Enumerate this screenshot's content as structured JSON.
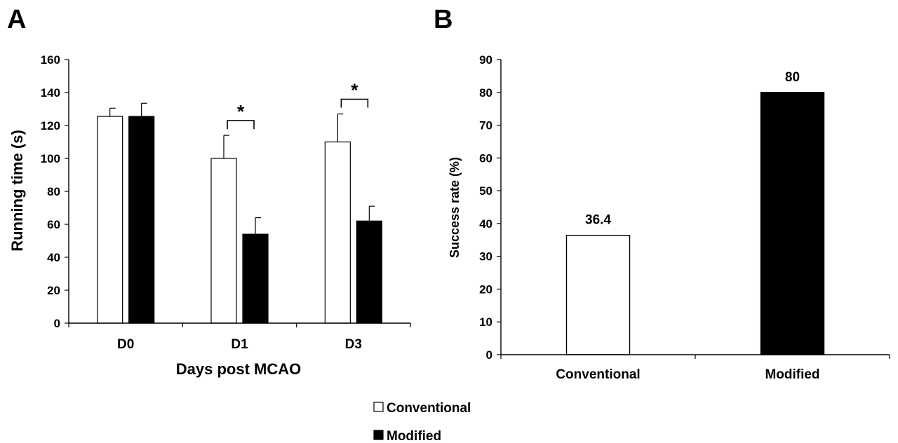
{
  "chart_data": [
    {
      "panel": "A",
      "type": "bar",
      "categories": [
        "D0",
        "D1",
        "D3"
      ],
      "series": [
        {
          "name": "Conventional",
          "values": [
            125.5,
            100,
            110
          ],
          "errors": [
            5,
            14,
            17
          ],
          "color": "#ffffff"
        },
        {
          "name": "Modified",
          "values": [
            125.5,
            54,
            62
          ],
          "errors": [
            8,
            10,
            9
          ],
          "color": "#000000"
        }
      ],
      "significance": [
        {
          "category": "D1",
          "label": "*"
        },
        {
          "category": "D3",
          "label": "*"
        }
      ],
      "title": "",
      "xlabel": "Days post MCAO",
      "ylabel": "Running time (s)",
      "ylim": [
        0,
        160
      ],
      "yticks": [
        0,
        20,
        40,
        60,
        80,
        100,
        120,
        140,
        160
      ],
      "grid": false
    },
    {
      "panel": "B",
      "type": "bar",
      "categories": [
        "Conventional",
        "Modified"
      ],
      "values": [
        36.4,
        80
      ],
      "value_labels": [
        "36.4",
        "80"
      ],
      "colors": [
        "#ffffff",
        "#000000"
      ],
      "title": "",
      "xlabel": "",
      "ylabel": "Success rate (%)",
      "ylim": [
        0,
        90
      ],
      "yticks": [
        0,
        10,
        20,
        30,
        40,
        50,
        60,
        70,
        80,
        90
      ],
      "grid": false
    }
  ],
  "legend": {
    "placement": "bottom-center",
    "items": [
      {
        "label": "Conventional",
        "color": "#ffffff"
      },
      {
        "label": "Modified",
        "color": "#000000"
      }
    ]
  }
}
